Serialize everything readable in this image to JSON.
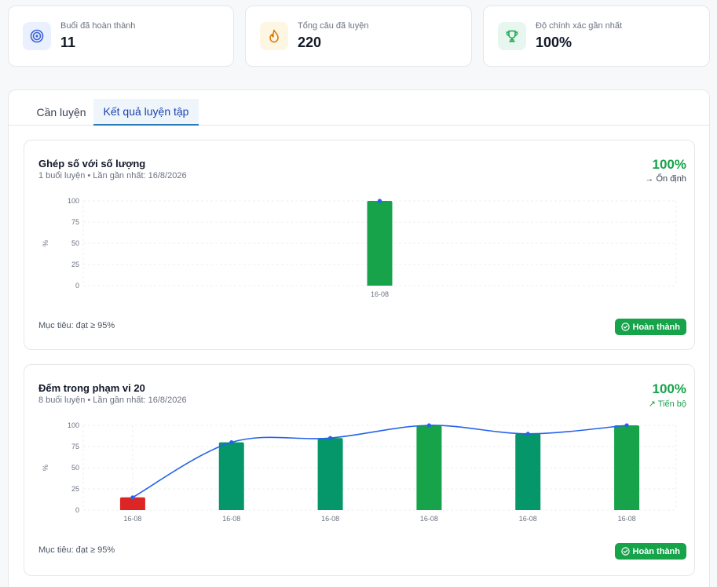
{
  "stats": [
    {
      "label": "Buổi đã hoàn thành",
      "value": "11",
      "icon": "target-icon",
      "bg": "#eaf0fd",
      "color": "#3b63d8"
    },
    {
      "label": "Tổng câu đã luyện",
      "value": "220",
      "icon": "flame-icon",
      "bg": "#fdf6e3",
      "color": "#d97706"
    },
    {
      "label": "Độ chính xác gần nhất",
      "value": "100%",
      "icon": "trophy-icon",
      "bg": "#e7f6ee",
      "color": "#16a34a"
    }
  ],
  "tabs": [
    {
      "label": "Cần luyện",
      "active": false
    },
    {
      "label": "Kết quả luyện tập",
      "active": true
    }
  ],
  "cards": [
    {
      "title": "Ghép số với số lượng",
      "subtitle": "1 buổi luyện • Lần gần nhất: 16/8/2026",
      "percent": "100%",
      "trend": "→ Ổn định",
      "trend_color": "#374151",
      "target": "Mục tiêu: đạt ≥ 95%",
      "button": "Hoàn thành"
    },
    {
      "title": "Đếm trong phạm vi 20",
      "subtitle": "8 buổi luyện • Lần gần nhất: 16/8/2026",
      "percent": "100%",
      "trend": "↗ Tiến bộ",
      "trend_color": "#16a34a",
      "target": "Mục tiêu: đạt ≥ 95%",
      "button": "Hoàn thành"
    }
  ],
  "chart_data": [
    {
      "type": "bar",
      "categories": [
        "16-08"
      ],
      "values": [
        100
      ],
      "bar_colors": [
        "#16a34a"
      ],
      "line": true,
      "ylabel": "%",
      "ylim": [
        0,
        100
      ],
      "yticks": [
        0,
        25,
        50,
        75,
        100
      ],
      "grid": true
    },
    {
      "type": "bar",
      "categories": [
        "16-08",
        "16-08",
        "16-08",
        "16-08",
        "16-08",
        "16-08"
      ],
      "values": [
        15,
        80,
        85,
        100,
        90,
        100
      ],
      "bar_colors": [
        "#dc2626",
        "#059669",
        "#059669",
        "#16a34a",
        "#059669",
        "#16a34a"
      ],
      "line": true,
      "ylabel": "%",
      "ylim": [
        0,
        100
      ],
      "yticks": [
        0,
        25,
        50,
        75,
        100
      ],
      "grid": true
    }
  ],
  "colors": {
    "accent": "#16a34a",
    "line": "#2563eb",
    "tab_active": "#1e40af"
  }
}
